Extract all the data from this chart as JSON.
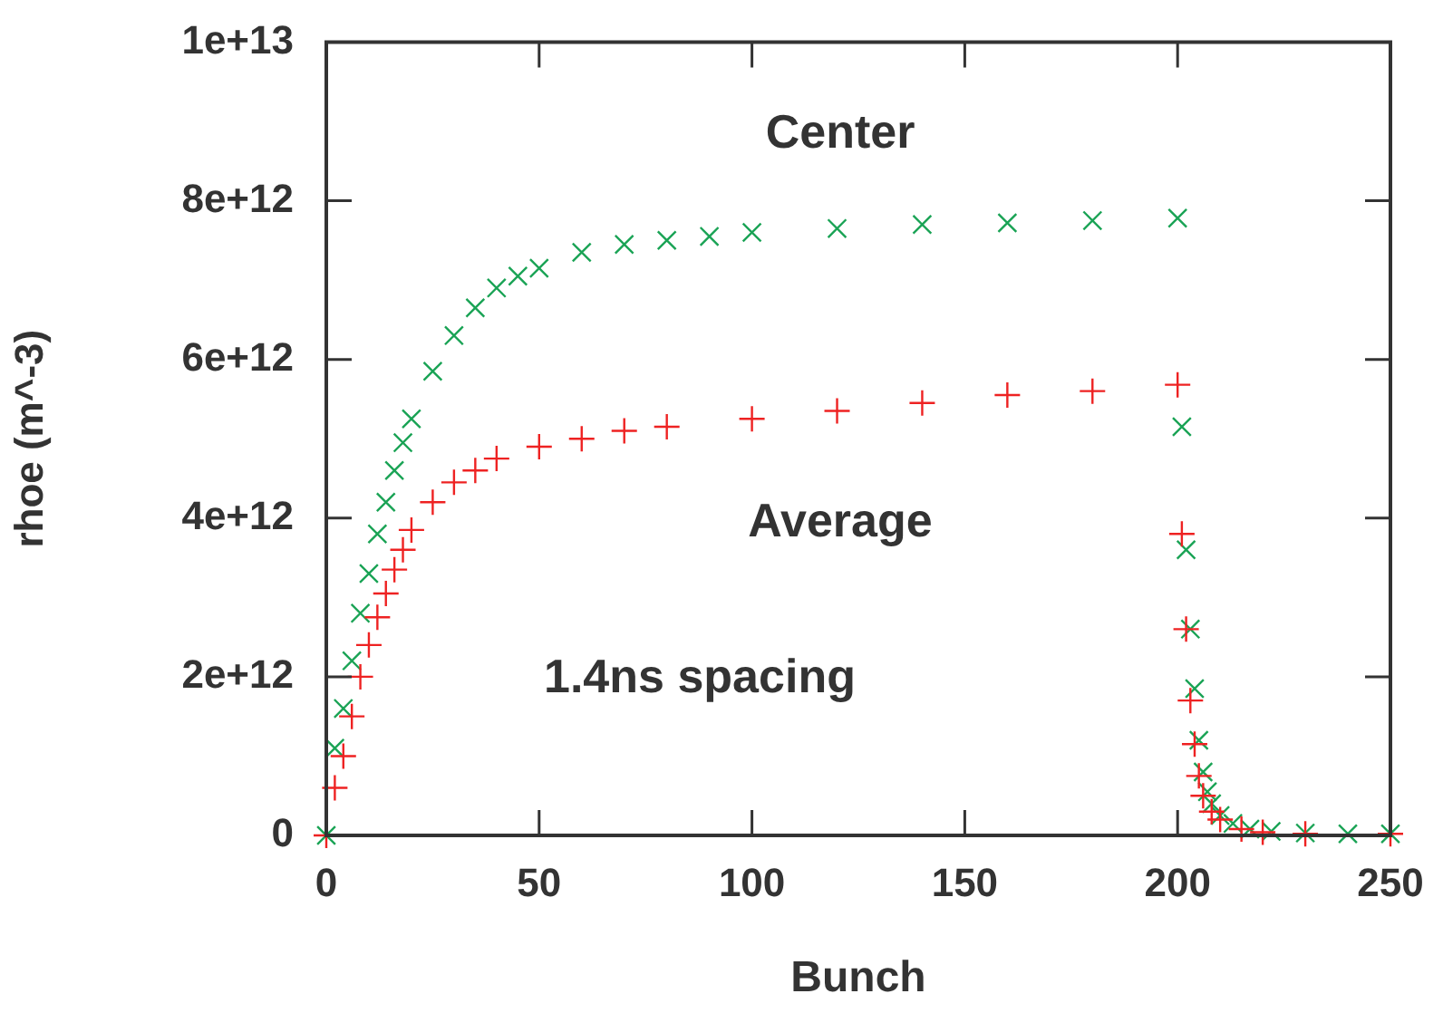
{
  "chart_data": {
    "type": "scatter",
    "xlabel": "Bunch",
    "ylabel": "rhoe (m^-3)",
    "annotations": [
      "1.4ns spacing"
    ],
    "xlim": [
      0,
      250
    ],
    "xticks": [
      0,
      50,
      100,
      150,
      200,
      250
    ],
    "ylim": [
      0,
      10000000000000.0
    ],
    "yticks": [
      {
        "value": 0,
        "label": "0"
      },
      {
        "value": 2000000000000.0,
        "label": "2e+12"
      },
      {
        "value": 4000000000000.0,
        "label": "4e+12"
      },
      {
        "value": 6000000000000.0,
        "label": "6e+12"
      },
      {
        "value": 8000000000000.0,
        "label": "8e+12"
      },
      {
        "value": 10000000000000.0,
        "label": "1e+13"
      }
    ],
    "marker": "cross",
    "series": [
      {
        "name": "Center",
        "color": "#1aa355",
        "x": [
          0,
          2,
          4,
          6,
          8,
          10,
          12,
          14,
          16,
          18,
          20,
          25,
          30,
          35,
          40,
          45,
          50,
          60,
          70,
          80,
          90,
          100,
          120,
          140,
          160,
          180,
          200,
          201,
          202,
          203,
          204,
          205,
          206,
          207,
          208,
          210,
          213,
          217,
          222,
          230,
          240,
          250
        ],
        "values": [
          0,
          1100000000000.0,
          1600000000000.0,
          2200000000000.0,
          2800000000000.0,
          3300000000000.0,
          3800000000000.0,
          4200000000000.0,
          4600000000000.0,
          4950000000000.0,
          5250000000000.0,
          5850000000000.0,
          6300000000000.0,
          6650000000000.0,
          6900000000000.0,
          7050000000000.0,
          7150000000000.0,
          7350000000000.0,
          7450000000000.0,
          7500000000000.0,
          7550000000000.0,
          7600000000000.0,
          7650000000000.0,
          7700000000000.0,
          7720000000000.0,
          7750000000000.0,
          7780000000000.0,
          5150000000000.0,
          3600000000000.0,
          2600000000000.0,
          1850000000000.0,
          1200000000000.0,
          800000000000.0,
          550000000000.0,
          400000000000.0,
          250000000000.0,
          150000000000.0,
          80000000000.0,
          50000000000.0,
          30000000000.0,
          20000000000.0,
          20000000000.0
        ]
      },
      {
        "name": "Average",
        "color": "#ee2222",
        "x": [
          0,
          2,
          4,
          6,
          8,
          10,
          12,
          14,
          16,
          18,
          20,
          25,
          30,
          35,
          40,
          50,
          60,
          70,
          80,
          100,
          120,
          140,
          160,
          180,
          200,
          201,
          202,
          203,
          204,
          205,
          206,
          208,
          210,
          215,
          220,
          230,
          250
        ],
        "values": [
          0,
          600000000000.0,
          1000000000000.0,
          1500000000000.0,
          2000000000000.0,
          2400000000000.0,
          2750000000000.0,
          3050000000000.0,
          3350000000000.0,
          3600000000000.0,
          3850000000000.0,
          4200000000000.0,
          4450000000000.0,
          4600000000000.0,
          4750000000000.0,
          4900000000000.0,
          5000000000000.0,
          5100000000000.0,
          5150000000000.0,
          5250000000000.0,
          5350000000000.0,
          5450000000000.0,
          5550000000000.0,
          5600000000000.0,
          5680000000000.0,
          3800000000000.0,
          2600000000000.0,
          1700000000000.0,
          1150000000000.0,
          750000000000.0,
          500000000000.0,
          300000000000.0,
          200000000000.0,
          80000000000.0,
          40000000000.0,
          20000000000.0,
          20000000000.0
        ]
      }
    ]
  }
}
